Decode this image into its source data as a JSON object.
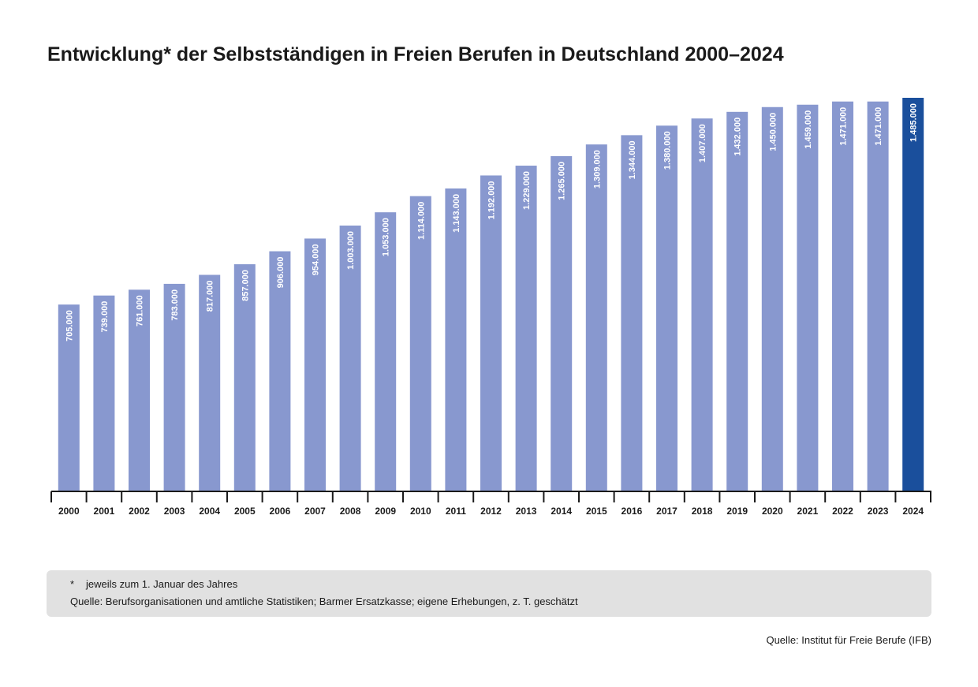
{
  "colors": {
    "bar": "#8898cf",
    "bar_highlight": "#1a4f9c",
    "axis": "#1a1a1a",
    "bar_label": "#ffffff",
    "note_background": "#e1e1e1"
  },
  "chart_data": {
    "type": "bar",
    "title": "Entwicklung* der Selbstständigen in Freien Berufen in Deutschland 2000–2024",
    "xlabel": "",
    "ylabel": "",
    "ylim": [
      0,
      1485000
    ],
    "grid": false,
    "highlight_category": "2024",
    "categories": [
      "2000",
      "2001",
      "2002",
      "2003",
      "2004",
      "2005",
      "2006",
      "2007",
      "2008",
      "2009",
      "2010",
      "2011",
      "2012",
      "2013",
      "2014",
      "2015",
      "2016",
      "2017",
      "2018",
      "2019",
      "2020",
      "2021",
      "2022",
      "2023",
      "2024"
    ],
    "values": [
      705000,
      739000,
      761000,
      783000,
      817000,
      857000,
      906000,
      954000,
      1003000,
      1053000,
      1114000,
      1143000,
      1192000,
      1229000,
      1265000,
      1309000,
      1344000,
      1380000,
      1407000,
      1432000,
      1450000,
      1459000,
      1471000,
      1471000,
      1485000
    ],
    "value_labels": [
      "705.000",
      "739.000",
      "761.000",
      "783.000",
      "817.000",
      "857.000",
      "906.000",
      "954.000",
      "1.003.000",
      "1.053.000",
      "1.114.000",
      "1.143.000",
      "1.192.000",
      "1.229.000",
      "1.265.000",
      "1.309.000",
      "1.344.000",
      "1.380.000",
      "1.407.000",
      "1.432.000",
      "1.450.000",
      "1.459.000",
      "1.471.000",
      "1.471.000",
      "1.485.000"
    ]
  },
  "notes": {
    "star": "*",
    "footnote": "jeweils zum 1. Januar des Jahres",
    "source_detail": "Quelle: Berufsorganisationen und amtliche Statistiken; Barmer Ersatzkasse; eigene Erhebungen, z. T. geschätzt"
  },
  "credit": "Quelle: Institut für Freie Berufe (IFB)"
}
